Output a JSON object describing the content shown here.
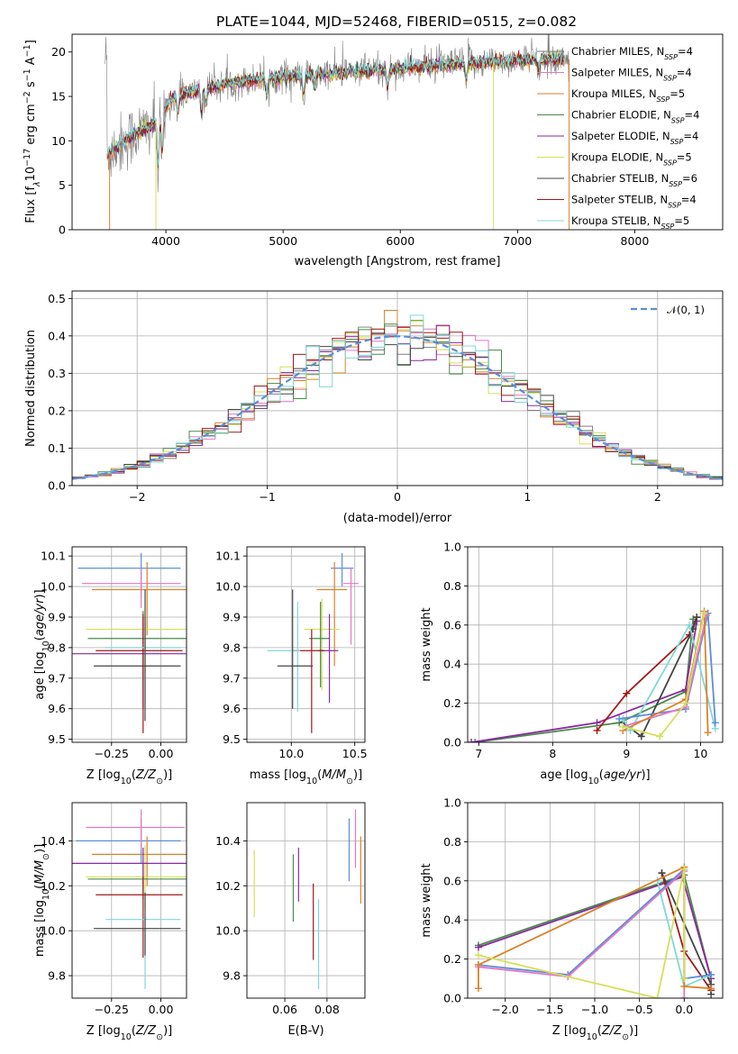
{
  "figure": {
    "title": "PLATE=1044, MJD=52468, FIBERID=0515, z=0.082"
  },
  "legend": [
    {
      "label": "Chabrier MILES, N",
      "sub": "SSP",
      "tail": "=4",
      "color": "#808080"
    },
    {
      "label": "Salpeter MILES, N",
      "sub": "SSP",
      "tail": "=4",
      "color": "#e377c2"
    },
    {
      "label": "Kroupa MILES, N",
      "sub": "SSP",
      "tail": "=5",
      "color": "#d9822b"
    },
    {
      "label": "Chabrier ELODIE, N",
      "sub": "SSP",
      "tail": "=4",
      "color": "#4a8a4a"
    },
    {
      "label": "Salpeter ELODIE, N",
      "sub": "SSP",
      "tail": "=4",
      "color": "#8a2aa0"
    },
    {
      "label": "Kroupa ELODIE, N",
      "sub": "SSP",
      "tail": "=5",
      "color": "#d4e157"
    },
    {
      "label": "Chabrier STELIB, N",
      "sub": "SSP",
      "tail": "=6",
      "color": "#444444"
    },
    {
      "label": "Salpeter STELIB, N",
      "sub": "SSP",
      "tail": "=4",
      "color": "#a01818"
    },
    {
      "label": "Kroupa STELIB, N",
      "sub": "SSP",
      "tail": "=5",
      "color": "#80d8d8"
    }
  ],
  "histogram_legend": {
    "label": "𝒩(0, 1)",
    "color": "#5b8dd9"
  },
  "chart_data": [
    {
      "id": "spectrum",
      "type": "line",
      "xlabel": "wavelength [Angstrom, rest frame]",
      "ylabel": "Flux [f",
      "ylabel_parts": [
        "Flux [f",
        "λ",
        "10",
        "−17",
        " erg cm",
        "−2",
        " s",
        "−1",
        " A",
        "−1",
        "]"
      ],
      "xlim": [
        3200,
        8750
      ],
      "ylim": [
        0,
        22
      ],
      "xticks": [
        4000,
        5000,
        6000,
        7000,
        8000
      ],
      "yticks": [
        0,
        5,
        10,
        15,
        20
      ],
      "grid": false,
      "legend_position": "upper right",
      "continuum": [
        [
          3500,
          8.5
        ],
        [
          3700,
          10.5
        ],
        [
          3850,
          11.5
        ],
        [
          3950,
          12.5
        ],
        [
          4050,
          14.8
        ],
        [
          4300,
          15.8
        ],
        [
          4600,
          16.6
        ],
        [
          5000,
          17.2
        ],
        [
          5500,
          17.7
        ],
        [
          6000,
          18.2
        ],
        [
          6500,
          18.7
        ],
        [
          7000,
          19.1
        ],
        [
          7400,
          19.2
        ]
      ],
      "data_range": [
        3480,
        7450
      ],
      "model_range": [
        3500,
        7400
      ]
    },
    {
      "id": "residual-hist",
      "type": "line",
      "xlabel": "(data-model)/error",
      "ylabel": "Normed distribution",
      "xlim": [
        -2.5,
        2.5
      ],
      "ylim": [
        0,
        0.52
      ],
      "xticks": [
        -2,
        -1,
        0,
        1,
        2
      ],
      "xtick_labels": [
        "−2",
        "−1",
        "0",
        "1",
        "2"
      ],
      "yticks": [
        0.0,
        0.1,
        0.2,
        0.3,
        0.4,
        0.5
      ],
      "ytick_labels": [
        "0.0",
        "0.1",
        "0.2",
        "0.3",
        "0.4",
        "0.5"
      ],
      "grid": true,
      "bin_width": 0.1,
      "reference_curve": "normal(0,1)"
    },
    {
      "id": "age-vs-Z",
      "type": "scatter",
      "xlabel": "Z [log10(Z/Z⊙)]",
      "ylabel": "age  [log10(age/yr)]",
      "xlim": [
        -0.45,
        0.13
      ],
      "ylim": [
        9.49,
        10.13
      ],
      "xticks": [
        -0.25,
        0.0
      ],
      "xtick_labels": [
        "−0.25",
        "0.00"
      ],
      "yticks": [
        9.5,
        9.6,
        9.7,
        9.8,
        9.9,
        10.0,
        10.1
      ],
      "ytick_labels": [
        "9.5",
        "9.6",
        "9.7",
        "9.8",
        "9.9",
        "10.0",
        "10.1"
      ],
      "grid": true,
      "points": [
        {
          "x": -0.1,
          "xerr": [
            0.32,
            0.2
          ],
          "y": 10.06,
          "yerr": [
            0.1,
            0.05
          ],
          "color": "#5b8dd9"
        },
        {
          "x": -0.1,
          "xerr": [
            0.3,
            0.2
          ],
          "y": 10.01,
          "yerr": [
            0.08,
            0.05
          ],
          "color": "#e377c2"
        },
        {
          "x": -0.07,
          "xerr": [
            0.28,
            0.3
          ],
          "y": 9.99,
          "yerr": [
            0.15,
            0.09
          ],
          "color": "#d9822b"
        },
        {
          "x": -0.08,
          "xerr": [
            0.3,
            0.22
          ],
          "y": 9.86,
          "yerr": [
            0.15,
            0.04
          ],
          "color": "#d4e157"
        },
        {
          "x": -0.09,
          "xerr": [
            0.28,
            0.22
          ],
          "y": 9.83,
          "yerr": [
            0.16,
            0.09
          ],
          "color": "#4a8a4a"
        },
        {
          "x": -0.09,
          "xerr": [
            0.36,
            0.29
          ],
          "y": 9.78,
          "yerr": [
            0.18,
            0.12
          ],
          "color": "#8a2aa0"
        },
        {
          "x": -0.09,
          "xerr": [
            0.24,
            0.2
          ],
          "y": 9.79,
          "yerr": [
            0.27,
            0.12
          ],
          "color": "#a01818"
        },
        {
          "x": -0.08,
          "xerr": [
            0.2,
            0.18
          ],
          "y": 9.8,
          "yerr": [
            0.2,
            0.1
          ],
          "color": "#80d8d8"
        },
        {
          "x": -0.08,
          "xerr": [
            0.26,
            0.18
          ],
          "y": 9.74,
          "yerr": [
            0.18,
            0.25
          ],
          "color": "#444444"
        }
      ]
    },
    {
      "id": "age-vs-mass",
      "type": "scatter",
      "xlabel": "mass [log10(M/M⊙)]",
      "xlim": [
        9.65,
        10.58
      ],
      "ylim": [
        9.49,
        10.13
      ],
      "xticks": [
        10.0,
        10.5
      ],
      "xtick_labels": [
        "10.0",
        "10.5"
      ],
      "yticks": [
        9.5,
        9.6,
        9.7,
        9.8,
        9.9,
        10.0,
        10.1
      ],
      "ytick_labels": [
        "9.5",
        "9.6",
        "9.7",
        "9.8",
        "9.9",
        "10.0",
        "10.1"
      ],
      "grid": true,
      "points": [
        {
          "x": 10.4,
          "xerr": [
            0.09,
            0.09
          ],
          "y": 10.06,
          "yerr": [
            0.06,
            0.05
          ],
          "color": "#5b8dd9"
        },
        {
          "x": 10.47,
          "xerr": [
            0.06,
            0.06
          ],
          "y": 10.01,
          "yerr": [
            0.2,
            0.05
          ],
          "color": "#e377c2"
        },
        {
          "x": 10.34,
          "xerr": [
            0.14,
            0.1
          ],
          "y": 9.99,
          "yerr": [
            0.25,
            0.09
          ],
          "color": "#d9822b"
        },
        {
          "x": 10.24,
          "xerr": [
            0.14,
            0.14
          ],
          "y": 9.86,
          "yerr": [
            0.2,
            0.1
          ],
          "color": "#d4e157"
        },
        {
          "x": 10.23,
          "xerr": [
            0.09,
            0.07
          ],
          "y": 9.83,
          "yerr": [
            0.16,
            0.12
          ],
          "color": "#4a8a4a"
        },
        {
          "x": 10.3,
          "xerr": [
            0.09,
            0.07
          ],
          "y": 9.79,
          "yerr": [
            0.17,
            0.12
          ],
          "color": "#8a2aa0"
        },
        {
          "x": 10.16,
          "xerr": [
            0.15,
            0.1
          ],
          "y": 9.79,
          "yerr": [
            0.27,
            0.07
          ],
          "color": "#a01818"
        },
        {
          "x": 10.05,
          "xerr": [
            0.24,
            0.02
          ],
          "y": 9.79,
          "yerr": [
            0.2,
            0.16
          ],
          "color": "#80d8d8"
        },
        {
          "x": 10.01,
          "xerr": [
            0.12,
            0.16
          ],
          "y": 9.74,
          "yerr": [
            0.14,
            0.25
          ],
          "color": "#444444"
        }
      ]
    },
    {
      "id": "mass-weight-vs-age",
      "type": "line",
      "xlabel": "age  [log10(age/yr)]",
      "ylabel": "mass weight",
      "xlim": [
        6.85,
        10.3
      ],
      "ylim": [
        0,
        1.0
      ],
      "xticks": [
        7,
        8,
        9,
        10
      ],
      "xtick_labels": [
        "7",
        "8",
        "9",
        "10"
      ],
      "yticks": [
        0.0,
        0.2,
        0.4,
        0.6,
        0.8,
        1.0
      ],
      "ytick_labels": [
        "0.0",
        "0.2",
        "0.4",
        "0.6",
        "0.8",
        "1.0"
      ],
      "grid": true,
      "series": [
        {
          "color": "#4a8a4a",
          "x": [
            6.95,
            8.9,
            9.8,
            9.9
          ],
          "y": [
            0.0,
            0.1,
            0.26,
            0.63
          ]
        },
        {
          "color": "#8a2aa0",
          "x": [
            6.9,
            8.6,
            9.8,
            9.95
          ],
          "y": [
            0.0,
            0.1,
            0.27,
            0.62
          ]
        },
        {
          "color": "#a01818",
          "x": [
            8.6,
            9.0,
            9.85,
            9.95
          ],
          "y": [
            0.06,
            0.25,
            0.55,
            0.64
          ]
        },
        {
          "color": "#444444",
          "x": [
            8.95,
            9.2,
            9.9,
            9.95
          ],
          "y": [
            0.1,
            0.03,
            0.58,
            0.64
          ]
        },
        {
          "color": "#80d8d8",
          "x": [
            8.95,
            9.05,
            9.85,
            10.2
          ],
          "y": [
            0.12,
            0.06,
            0.6,
            0.07
          ]
        },
        {
          "color": "#5b8dd9",
          "x": [
            8.9,
            9.8,
            10.1,
            10.2
          ],
          "y": [
            0.12,
            0.17,
            0.66,
            0.1
          ]
        },
        {
          "color": "#e377c2",
          "x": [
            8.95,
            9.8,
            10.08
          ],
          "y": [
            0.08,
            0.18,
            0.65
          ]
        },
        {
          "color": "#d9822b",
          "x": [
            8.95,
            9.8,
            10.05,
            10.1
          ],
          "y": [
            0.06,
            0.22,
            0.67,
            0.05
          ]
        },
        {
          "color": "#d4e157",
          "x": [
            8.95,
            9.45,
            9.8,
            10.05
          ],
          "y": [
            0.08,
            0.03,
            0.2,
            0.66
          ]
        }
      ]
    },
    {
      "id": "mass-vs-Z",
      "type": "scatter",
      "xlabel": "Z [log10(Z/Z⊙)]",
      "ylabel": "mass [log10(M/M⊙)]",
      "xlim": [
        -0.45,
        0.13
      ],
      "ylim": [
        9.7,
        10.57
      ],
      "xticks": [
        -0.25,
        0.0
      ],
      "xtick_labels": [
        "−0.25",
        "0.00"
      ],
      "yticks": [
        9.8,
        10.0,
        10.2,
        10.4
      ],
      "ytick_labels": [
        "9.8",
        "10.0",
        "10.2",
        "10.4"
      ],
      "grid": true,
      "points": [
        {
          "x": -0.1,
          "xerr": [
            0.33,
            0.2
          ],
          "y": 10.4,
          "yerr": [
            0.1,
            0.1
          ],
          "color": "#5b8dd9"
        },
        {
          "x": -0.1,
          "xerr": [
            0.28,
            0.22
          ],
          "y": 10.46,
          "yerr": [
            0.1,
            0.08
          ],
          "color": "#e377c2"
        },
        {
          "x": -0.07,
          "xerr": [
            0.28,
            0.3
          ],
          "y": 10.34,
          "yerr": [
            0.14,
            0.08
          ],
          "color": "#d9822b"
        },
        {
          "x": -0.08,
          "xerr": [
            0.3,
            0.22
          ],
          "y": 10.24,
          "yerr": [
            0.14,
            0.14
          ],
          "color": "#d4e157"
        },
        {
          "x": -0.09,
          "xerr": [
            0.28,
            0.22
          ],
          "y": 10.23,
          "yerr": [
            0.09,
            0.07
          ],
          "color": "#4a8a4a"
        },
        {
          "x": -0.09,
          "xerr": [
            0.36,
            0.29
          ],
          "y": 10.3,
          "yerr": [
            0.09,
            0.07
          ],
          "color": "#8a2aa0"
        },
        {
          "x": -0.09,
          "xerr": [
            0.24,
            0.2
          ],
          "y": 10.16,
          "yerr": [
            0.28,
            0.08
          ],
          "color": "#a01818"
        },
        {
          "x": -0.08,
          "xerr": [
            0.2,
            0.18
          ],
          "y": 10.05,
          "yerr": [
            0.31,
            0.02
          ],
          "color": "#80d8d8"
        },
        {
          "x": -0.08,
          "xerr": [
            0.26,
            0.18
          ],
          "y": 10.01,
          "yerr": [
            0.12,
            0.16
          ],
          "color": "#444444"
        }
      ]
    },
    {
      "id": "mass-vs-EBV",
      "type": "scatter",
      "xlabel": "E(B-V)",
      "xlim": [
        0.042,
        0.098
      ],
      "ylim": [
        9.7,
        10.57
      ],
      "xticks": [
        0.06,
        0.08
      ],
      "xtick_labels": [
        "0.06",
        "0.08"
      ],
      "yticks": [
        9.8,
        10.0,
        10.2,
        10.4
      ],
      "ytick_labels": [
        "9.8",
        "10.0",
        "10.2",
        "10.4"
      ],
      "grid": true,
      "points": [
        {
          "x": 0.0455,
          "y": 10.21,
          "yerr": [
            0.15,
            0.15
          ],
          "color": "#d4e157"
        },
        {
          "x": 0.064,
          "y": 10.19,
          "yerr": [
            0.15,
            0.15
          ],
          "color": "#4a8a4a"
        },
        {
          "x": 0.0665,
          "y": 10.25,
          "yerr": [
            0.12,
            0.12
          ],
          "color": "#8a2aa0"
        },
        {
          "x": 0.0735,
          "y": 10.04,
          "yerr": [
            0.17,
            0.17
          ],
          "color": "#a01818"
        },
        {
          "x": 0.076,
          "y": 9.94,
          "yerr": [
            0.2,
            0.2
          ],
          "color": "#80d8d8"
        },
        {
          "x": 0.0905,
          "y": 10.36,
          "yerr": [
            0.14,
            0.14
          ],
          "color": "#5b8dd9"
        },
        {
          "x": 0.0935,
          "y": 10.41,
          "yerr": [
            0.13,
            0.13
          ],
          "color": "#e377c2"
        },
        {
          "x": 0.096,
          "y": 10.27,
          "yerr": [
            0.15,
            0.15
          ],
          "color": "#d9822b"
        }
      ]
    },
    {
      "id": "mass-weight-vs-Z",
      "type": "line",
      "xlabel": "Z [log10(Z/Z⊙)]",
      "ylabel": "mass weight",
      "xlim": [
        -2.42,
        0.43
      ],
      "ylim": [
        0,
        1.0
      ],
      "xticks": [
        -2.0,
        -1.5,
        -1.0,
        -0.5,
        0.0
      ],
      "xtick_labels": [
        "−2.0",
        "−1.5",
        "−1.0",
        "−0.5",
        "0.0"
      ],
      "yticks": [
        0.0,
        0.2,
        0.4,
        0.6,
        0.8,
        1.0
      ],
      "ytick_labels": [
        "0.0",
        "0.2",
        "0.4",
        "0.6",
        "0.8",
        "1.0"
      ],
      "grid": true,
      "series": [
        {
          "color": "#4a8a4a",
          "x": [
            -2.3,
            0.0,
            0.3
          ],
          "y": [
            0.27,
            0.63,
            0.1
          ]
        },
        {
          "color": "#8a2aa0",
          "x": [
            -2.3,
            -0.02,
            0.3
          ],
          "y": [
            0.26,
            0.62,
            0.1
          ]
        },
        {
          "color": "#a01818",
          "x": [
            -0.25,
            0.0,
            0.3
          ],
          "y": [
            0.64,
            0.24,
            0.04
          ]
        },
        {
          "color": "#444444",
          "x": [
            -0.25,
            0.3,
            0.3
          ],
          "y": [
            0.64,
            0.07,
            0.02
          ]
        },
        {
          "color": "#80d8d8",
          "x": [
            -0.3,
            0.0,
            0.3
          ],
          "y": [
            0.6,
            0.06,
            0.12
          ]
        },
        {
          "color": "#5b8dd9",
          "x": [
            -2.3,
            -1.3,
            0.0,
            0.0,
            0.3
          ],
          "y": [
            0.17,
            0.12,
            0.66,
            0.1,
            0.12
          ]
        },
        {
          "color": "#e377c2",
          "x": [
            -2.3,
            -1.3,
            0.0,
            0.0
          ],
          "y": [
            0.16,
            0.11,
            0.65,
            0.0
          ]
        },
        {
          "color": "#d9822b",
          "x": [
            -2.3,
            -2.3,
            0.0,
            0.0,
            0.3
          ],
          "y": [
            0.05,
            0.17,
            0.67,
            0.06,
            0.05
          ]
        },
        {
          "color": "#d4e157",
          "x": [
            -2.3,
            -0.3,
            0.0,
            0.0
          ],
          "y": [
            0.22,
            0.0,
            0.66,
            0.1
          ]
        }
      ]
    }
  ]
}
